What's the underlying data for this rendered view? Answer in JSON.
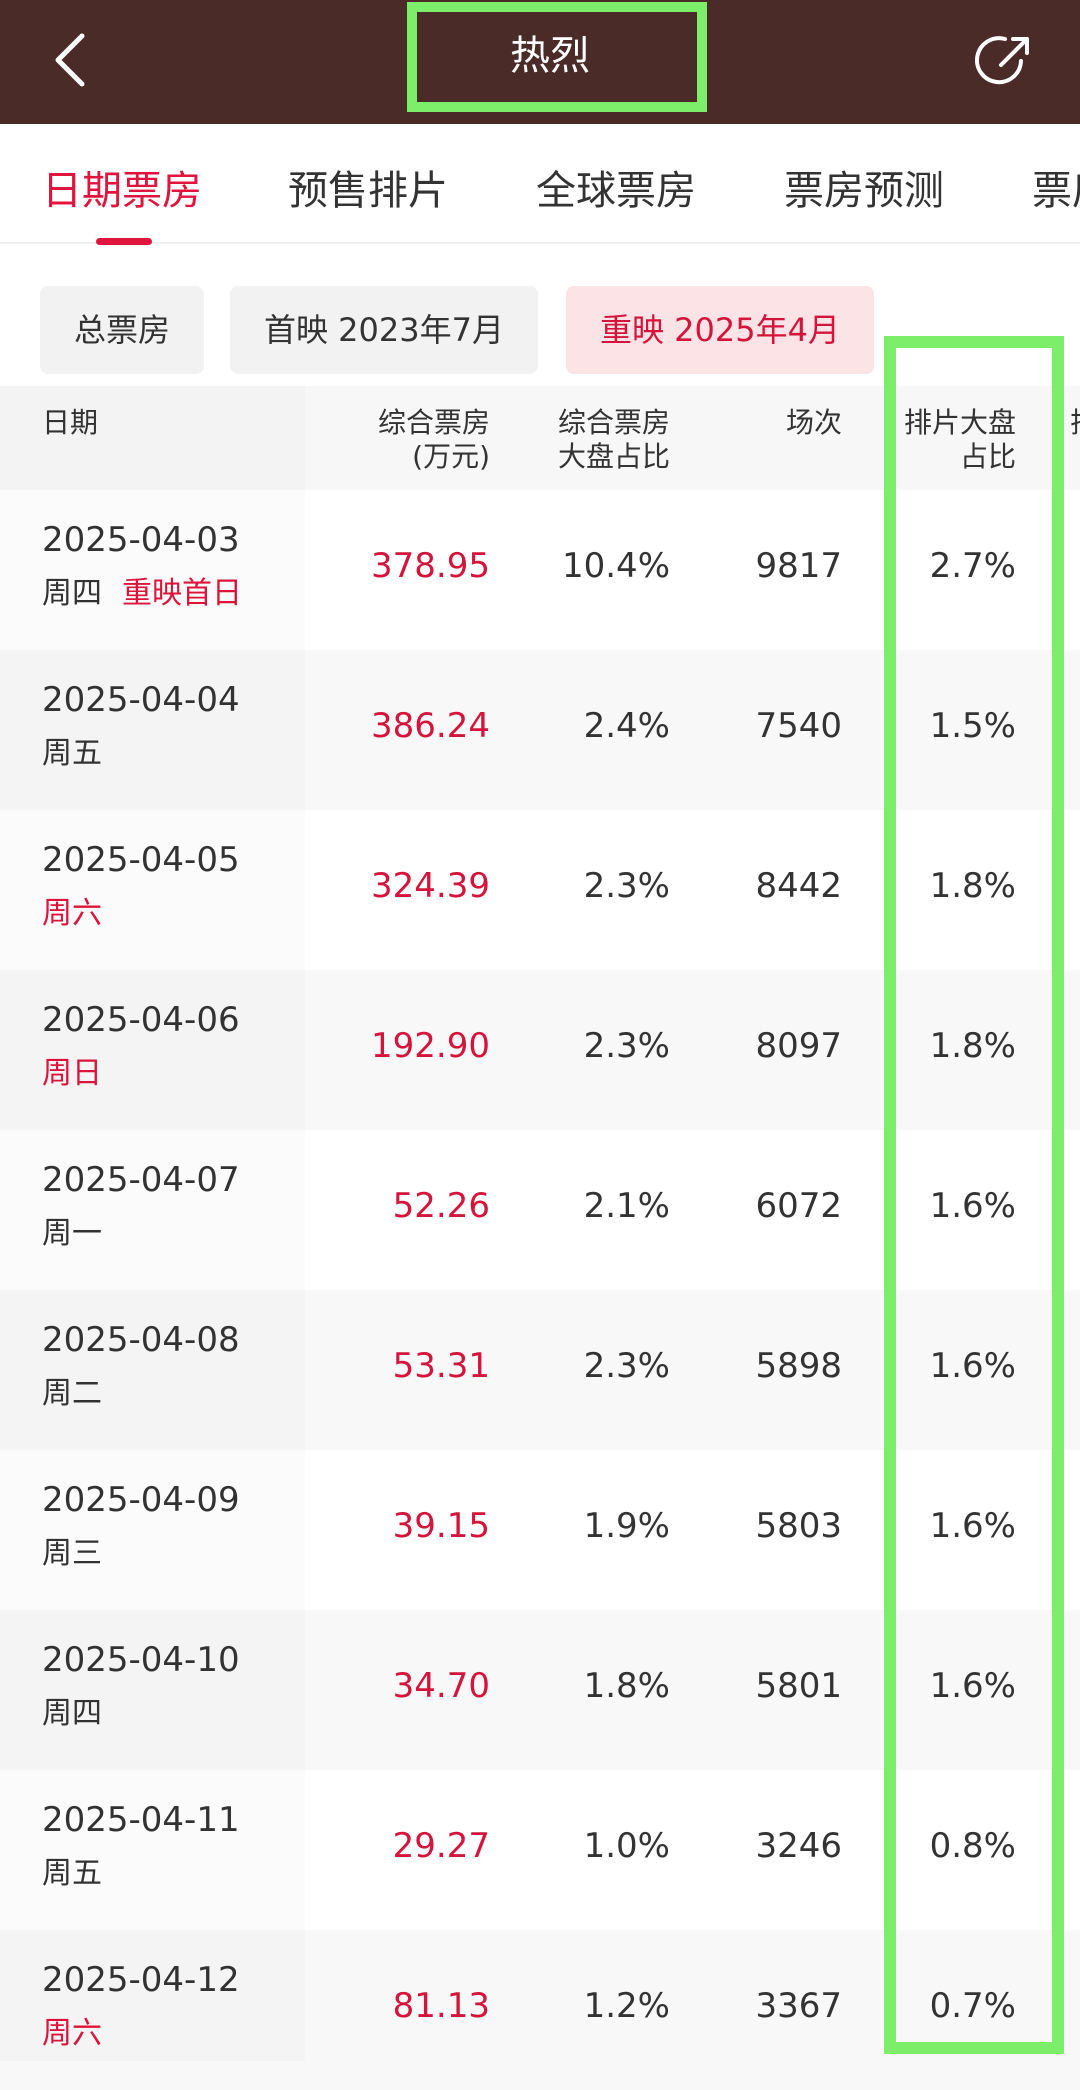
{
  "header": {
    "title": "热烈",
    "back_icon": "chevron-left-icon",
    "share_icon": "share-icon",
    "bg_color": "#4a2b28",
    "highlight_color": "#7dee6a"
  },
  "tabs": [
    {
      "label": "日期票房",
      "active": true
    },
    {
      "label": "预售排片",
      "active": false
    },
    {
      "label": "全球票房",
      "active": false
    },
    {
      "label": "票房预测",
      "active": false
    },
    {
      "label": "票房",
      "active": false
    }
  ],
  "filters": [
    {
      "label": "总票房",
      "active": false
    },
    {
      "label": "首映 2023年7月",
      "active": false
    },
    {
      "label": "重映 2025年4月",
      "active": true
    }
  ],
  "table": {
    "headers": {
      "date": "日期",
      "box_office_1": "综合票房",
      "box_office_2": "(万元)",
      "share_1": "综合票房",
      "share_2": "大盘占比",
      "shows": "场次",
      "sched_1": "排片大盘",
      "sched_2": "占比",
      "next": "排"
    },
    "rows": [
      {
        "date": "2025-04-03",
        "day": "周四",
        "tag": "重映首日",
        "weekend": false,
        "box_office": "378.95",
        "share": "10.4%",
        "shows": "9817",
        "sched": "2.7%"
      },
      {
        "date": "2025-04-04",
        "day": "周五",
        "tag": "",
        "weekend": false,
        "box_office": "386.24",
        "share": "2.4%",
        "shows": "7540",
        "sched": "1.5%"
      },
      {
        "date": "2025-04-05",
        "day": "周六",
        "tag": "",
        "weekend": true,
        "box_office": "324.39",
        "share": "2.3%",
        "shows": "8442",
        "sched": "1.8%"
      },
      {
        "date": "2025-04-06",
        "day": "周日",
        "tag": "",
        "weekend": true,
        "box_office": "192.90",
        "share": "2.3%",
        "shows": "8097",
        "sched": "1.8%"
      },
      {
        "date": "2025-04-07",
        "day": "周一",
        "tag": "",
        "weekend": false,
        "box_office": "52.26",
        "share": "2.1%",
        "shows": "6072",
        "sched": "1.6%"
      },
      {
        "date": "2025-04-08",
        "day": "周二",
        "tag": "",
        "weekend": false,
        "box_office": "53.31",
        "share": "2.3%",
        "shows": "5898",
        "sched": "1.6%"
      },
      {
        "date": "2025-04-09",
        "day": "周三",
        "tag": "",
        "weekend": false,
        "box_office": "39.15",
        "share": "1.9%",
        "shows": "5803",
        "sched": "1.6%"
      },
      {
        "date": "2025-04-10",
        "day": "周四",
        "tag": "",
        "weekend": false,
        "box_office": "34.70",
        "share": "1.8%",
        "shows": "5801",
        "sched": "1.6%"
      },
      {
        "date": "2025-04-11",
        "day": "周五",
        "tag": "",
        "weekend": false,
        "box_office": "29.27",
        "share": "1.0%",
        "shows": "3246",
        "sched": "0.8%"
      },
      {
        "date": "2025-04-12",
        "day": "周六",
        "tag": "",
        "weekend": true,
        "box_office": "81.13",
        "share": "1.2%",
        "shows": "3367",
        "sched": "0.7%"
      }
    ]
  }
}
